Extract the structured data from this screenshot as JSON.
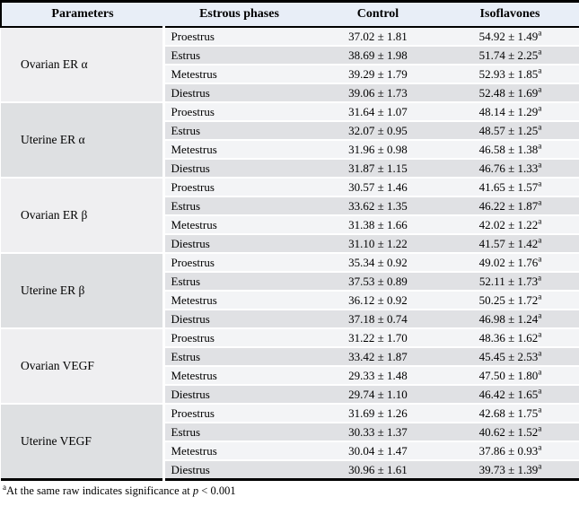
{
  "table": {
    "headers": {
      "parameters": "Parameters",
      "estrous_phases": "Estrous phases",
      "control": "Control",
      "isoflavones": "Isoflavones"
    },
    "sig_marker": "a",
    "groups": [
      {
        "parameter": "Ovarian ER α",
        "rows": [
          {
            "phase": "Proestrus",
            "control": "37.02 ± 1.81",
            "isoflavones": "54.92 ± 1.49"
          },
          {
            "phase": "Estrus",
            "control": "38.69 ± 1.98",
            "isoflavones": "51.74 ± 2.25"
          },
          {
            "phase": "Metestrus",
            "control": "39.29 ± 1.79",
            "isoflavones": "52.93 ± 1.85"
          },
          {
            "phase": "Diestrus",
            "control": "39.06 ± 1.73",
            "isoflavones": "52.48 ± 1.69"
          }
        ]
      },
      {
        "parameter": "Uterine ER α",
        "rows": [
          {
            "phase": "Proestrus",
            "control": "31.64 ± 1.07",
            "isoflavones": "48.14 ± 1.29"
          },
          {
            "phase": "Estrus",
            "control": "32.07 ± 0.95",
            "isoflavones": "48.57 ± 1.25"
          },
          {
            "phase": "Metestrus",
            "control": "31.96 ± 0.98",
            "isoflavones": "46.58 ± 1.38"
          },
          {
            "phase": "Diestrus",
            "control": "31.87 ± 1.15",
            "isoflavones": "46.76 ± 1.33"
          }
        ]
      },
      {
        "parameter": "Ovarian ER β",
        "rows": [
          {
            "phase": "Proestrus",
            "control": "30.57 ± 1.46",
            "isoflavones": "41.65 ± 1.57"
          },
          {
            "phase": "Estrus",
            "control": "33.62 ± 1.35",
            "isoflavones": "46.22 ± 1.87"
          },
          {
            "phase": "Metestrus",
            "control": "31.38 ± 1.66",
            "isoflavones": "42.02 ± 1.22"
          },
          {
            "phase": "Diestrus",
            "control": "31.10 ± 1.22",
            "isoflavones": "41.57 ± 1.42"
          }
        ]
      },
      {
        "parameter": "Uterine ER β",
        "rows": [
          {
            "phase": "Proestrus",
            "control": "35.34 ± 0.92",
            "isoflavones": "49.02 ± 1.76"
          },
          {
            "phase": "Estrus",
            "control": "37.53 ± 0.89",
            "isoflavones": "52.11 ± 1.73"
          },
          {
            "phase": "Metestrus",
            "control": "36.12 ± 0.92",
            "isoflavones": "50.25 ± 1.72"
          },
          {
            "phase": "Diestrus",
            "control": "37.18 ± 0.74",
            "isoflavones": "46.98 ± 1.24"
          }
        ]
      },
      {
        "parameter": "Ovarian VEGF",
        "rows": [
          {
            "phase": "Proestrus",
            "control": "31.22 ± 1.70",
            "isoflavones": "48.36 ± 1.62"
          },
          {
            "phase": "Estrus",
            "control": "33.42 ± 1.87",
            "isoflavones": "45.45 ± 2.53"
          },
          {
            "phase": "Metestrus",
            "control": "29.33 ± 1.48",
            "isoflavones": "47.50 ± 1.80"
          },
          {
            "phase": "Diestrus",
            "control": "29.74 ± 1.10",
            "isoflavones": "46.42 ± 1.65"
          }
        ]
      },
      {
        "parameter": "Uterine VEGF",
        "rows": [
          {
            "phase": "Proestrus",
            "control": "31.69 ± 1.26",
            "isoflavones": "42.68 ± 1.75"
          },
          {
            "phase": "Estrus",
            "control": "30.33 ± 1.37",
            "isoflavones": "40.62 ± 1.52"
          },
          {
            "phase": "Metestrus",
            "control": "30.04 ± 1.47",
            "isoflavones": "37.86 ± 0.93"
          },
          {
            "phase": "Diestrus",
            "control": "30.96 ± 1.61",
            "isoflavones": "39.73 ± 1.39"
          }
        ]
      }
    ]
  },
  "footnote": {
    "marker": "a",
    "text": "At the same raw indicates significance at",
    "p": "p",
    "value": "< 0.001"
  },
  "colors": {
    "header_bg": "#e8eef7",
    "row_light": "#f3f4f6",
    "row_dark": "#e0e1e4",
    "param_light": "#efeff1",
    "param_dark": "#dee0e2",
    "border": "#000000"
  }
}
